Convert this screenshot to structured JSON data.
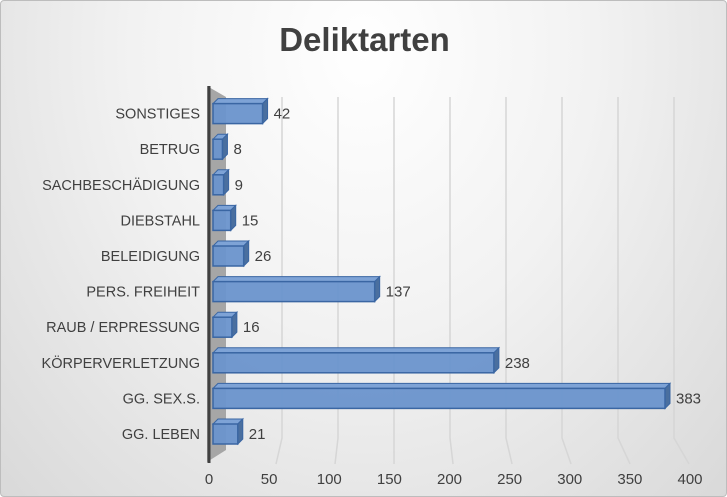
{
  "chart_data": {
    "type": "bar",
    "orientation": "horizontal",
    "style": "3d-clustered",
    "title": "Deliktarten",
    "categories": [
      "GG. LEBEN",
      "GG. SEX.S.",
      "KÖRPERVERLETZUNG",
      "RAUB / ERPRESSUNG",
      "PERS. FREIHEIT",
      "BELEIDIGUNG",
      "DIEBSTAHL",
      "SACHBESCHÄDIGUNG",
      "BETRUG",
      "SONSTIGES"
    ],
    "values": [
      21,
      383,
      238,
      16,
      137,
      26,
      15,
      9,
      8,
      42
    ],
    "xlim": [
      0,
      400
    ],
    "xticks": [
      0,
      50,
      100,
      150,
      200,
      250,
      300,
      350,
      400
    ],
    "xlabel": "",
    "ylabel": "",
    "grid": true,
    "legend": "none",
    "colors": {
      "bar": "#6a93cc",
      "bar_edge": "#3a66a3",
      "bar_side": "#4a6f9f",
      "wall": "#a6a6a6",
      "axis": "#404040"
    }
  }
}
